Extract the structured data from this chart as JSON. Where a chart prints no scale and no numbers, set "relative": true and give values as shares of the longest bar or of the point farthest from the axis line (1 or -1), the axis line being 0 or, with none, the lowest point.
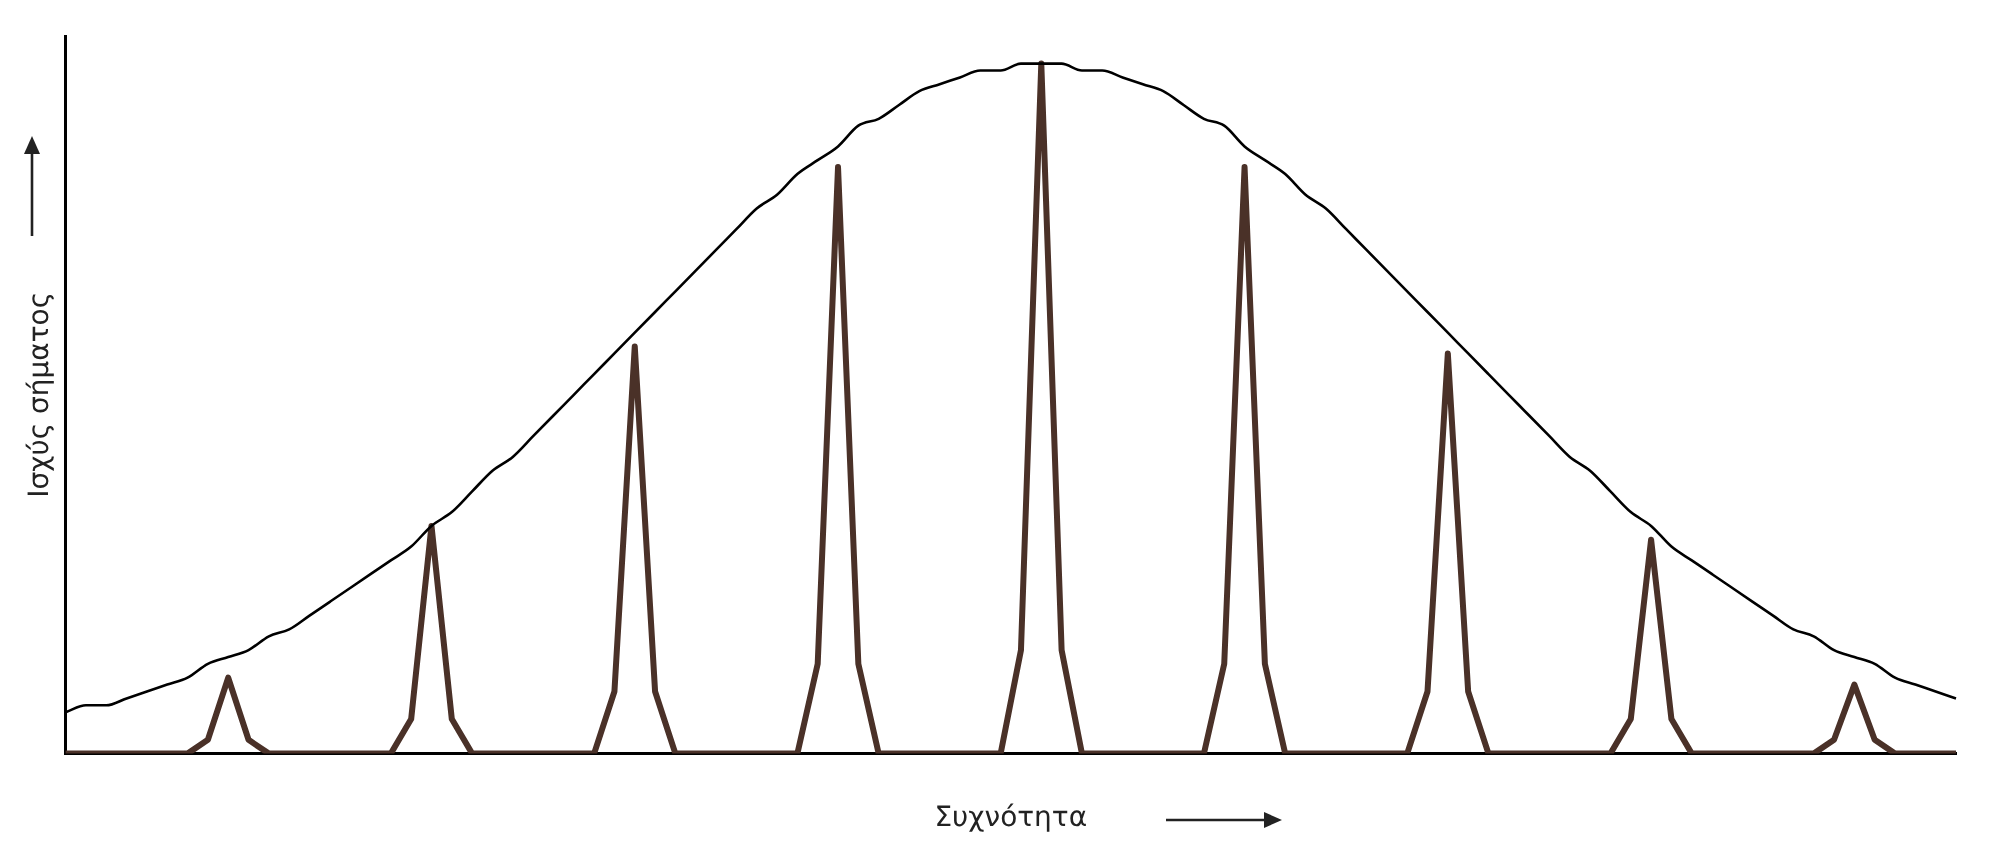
{
  "chart_data": {
    "type": "line",
    "relative": true,
    "xlabel": "Συχνότητα",
    "ylabel": "Ισχύς σήματος",
    "categories": [
      null,
      null,
      null,
      null,
      null,
      null,
      null,
      null,
      null,
      null,
      null,
      null,
      null,
      null,
      null,
      null,
      null,
      null,
      null,
      null,
      null,
      null,
      null,
      null,
      null,
      null,
      null,
      null,
      null,
      null,
      null,
      null,
      null,
      null,
      null,
      null,
      null,
      null,
      null,
      null,
      null,
      null,
      null,
      null,
      null,
      null,
      null,
      null,
      null,
      null,
      null,
      null,
      null,
      null,
      null,
      null,
      null,
      null,
      null,
      null,
      null,
      null,
      null,
      null,
      null,
      null,
      null,
      null,
      null,
      null,
      null,
      null,
      null,
      null,
      null,
      null,
      null,
      null,
      null,
      null,
      null,
      null,
      null,
      null,
      null,
      null,
      null,
      null,
      null,
      null,
      null,
      null,
      null,
      null
    ],
    "grid": false,
    "legend": false,
    "marker": "none",
    "series": [
      {
        "color": "#000000",
        "values": [
          0.06,
          0.07,
          0.07,
          0.08,
          0.09,
          0.1,
          0.11,
          0.13,
          0.14,
          0.15,
          0.17,
          0.18,
          0.2,
          0.22,
          0.24,
          0.26,
          0.28,
          0.3,
          0.33,
          0.35,
          0.38,
          0.41,
          0.43,
          0.46,
          0.49,
          0.52,
          0.55,
          0.58,
          0.61,
          0.64,
          0.67,
          0.7,
          0.73,
          0.76,
          0.79,
          0.81,
          0.84,
          0.86,
          0.88,
          0.91,
          0.92,
          0.94,
          0.96,
          0.97,
          0.98,
          0.99,
          0.99,
          1.0,
          1.0,
          1.0,
          0.99,
          0.99,
          0.98,
          0.97,
          0.96,
          0.94,
          0.92,
          0.91,
          0.88,
          0.86,
          0.84,
          0.81,
          0.79,
          0.76,
          0.73,
          0.7,
          0.67,
          0.64,
          0.61,
          0.58,
          0.55,
          0.52,
          0.49,
          0.46,
          0.43,
          0.41,
          0.38,
          0.35,
          0.33,
          0.3,
          0.28,
          0.26,
          0.24,
          0.22,
          0.2,
          0.18,
          0.17,
          0.15,
          0.14,
          0.13,
          0.11,
          0.1,
          0.09,
          0.08
        ]
      },
      {
        "color": "#4a3128",
        "values": [
          0,
          0,
          0,
          0,
          0,
          0,
          0,
          0.02,
          0.11,
          0.02,
          0,
          0,
          0,
          0,
          0,
          0,
          0,
          0.05,
          0.33,
          0.05,
          0,
          0,
          0,
          0,
          0,
          0,
          0,
          0.09,
          0.59,
          0.09,
          0,
          0,
          0,
          0,
          0,
          0,
          0,
          0.13,
          0.85,
          0.13,
          0,
          0,
          0,
          0,
          0,
          0,
          0,
          0.15,
          1.0,
          0.15,
          0,
          0,
          0,
          0,
          0,
          0,
          0,
          0.13,
          0.85,
          0.13,
          0,
          0,
          0,
          0,
          0,
          0,
          0,
          0.09,
          0.58,
          0.09,
          0,
          0,
          0,
          0,
          0,
          0,
          0,
          0.05,
          0.31,
          0.05,
          0,
          0,
          0,
          0,
          0,
          0,
          0,
          0.02,
          0.1,
          0.02,
          0,
          0,
          0,
          0
        ]
      }
    ]
  }
}
